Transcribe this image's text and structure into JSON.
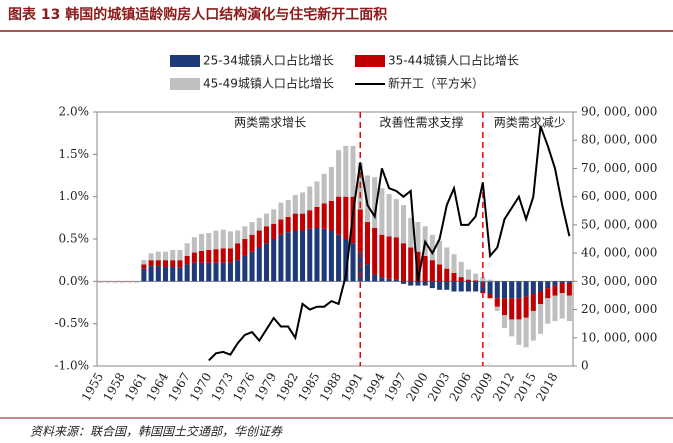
{
  "chart_data": {
    "type": "bar-line",
    "title": "图表 13   韩国的城镇适龄购房人口结构演化与住宅新开工面积",
    "source": "资料来源：联合国，韩国国土交通部，华创证券",
    "annotations": [
      "两类需求增长",
      "改善性需求支撑",
      "两类需求减少"
    ],
    "categories": [
      "1955",
      null,
      null,
      "1958",
      null,
      null,
      "1961",
      null,
      null,
      "1964",
      null,
      null,
      "1967",
      null,
      null,
      "1970",
      null,
      null,
      "1973",
      null,
      null,
      "1976",
      null,
      null,
      "1979",
      null,
      null,
      "1982",
      null,
      null,
      "1985",
      null,
      null,
      "1988",
      null,
      null,
      "1991",
      null,
      null,
      "1994",
      null,
      null,
      "1997",
      null,
      null,
      "2000",
      null,
      null,
      "2003",
      null,
      null,
      "2006",
      null,
      null,
      "2009",
      null,
      null,
      "2012",
      null,
      null,
      "2015",
      null,
      null,
      "2018",
      null,
      null
    ],
    "series": [
      {
        "name": "25-34城镇人口占比增长",
        "color": "#1f3a78",
        "values": [
          0,
          0,
          0,
          0,
          0,
          0,
          0.15,
          0.18,
          0.18,
          0.17,
          0.17,
          0.16,
          0.2,
          0.22,
          0.22,
          0.22,
          0.22,
          0.22,
          0.22,
          0.25,
          0.3,
          0.35,
          0.4,
          0.45,
          0.5,
          0.55,
          0.58,
          0.6,
          0.6,
          0.62,
          0.63,
          0.62,
          0.6,
          0.55,
          0.5,
          0.45,
          0.35,
          0.2,
          0.08,
          0.05,
          0.03,
          0.02,
          -0.03,
          -0.05,
          -0.05,
          -0.05,
          -0.08,
          -0.1,
          -0.1,
          -0.12,
          -0.12,
          -0.12,
          -0.12,
          -0.12,
          -0.15,
          -0.2,
          -0.2,
          -0.2,
          -0.2,
          -0.18,
          -0.15,
          -0.12,
          -0.08,
          -0.05,
          -0.02,
          -0.02
        ]
      },
      {
        "name": "35-44城镇人口占比增长",
        "color": "#c00000",
        "values": [
          0,
          0,
          0,
          0,
          0,
          0,
          0.05,
          0.07,
          0.07,
          0.08,
          0.08,
          0.09,
          0.1,
          0.12,
          0.14,
          0.15,
          0.16,
          0.17,
          0.17,
          0.2,
          0.2,
          0.2,
          0.2,
          0.2,
          0.18,
          0.18,
          0.18,
          0.2,
          0.2,
          0.22,
          0.25,
          0.3,
          0.35,
          0.45,
          0.5,
          0.55,
          0.5,
          0.5,
          0.55,
          0.5,
          0.5,
          0.5,
          0.45,
          0.4,
          0.35,
          0.3,
          0.25,
          0.2,
          0.15,
          0.1,
          0.05,
          0.02,
          0.01,
          -0.02,
          -0.05,
          -0.1,
          -0.2,
          -0.25,
          -0.25,
          -0.25,
          -0.2,
          -0.15,
          -0.12,
          -0.12,
          -0.12,
          -0.15
        ]
      },
      {
        "name": "45-49城镇人口占比增长",
        "color": "#bfbfbf",
        "values": [
          0,
          0,
          0,
          0,
          0,
          0,
          0.05,
          0.08,
          0.1,
          0.1,
          0.12,
          0.12,
          0.15,
          0.18,
          0.2,
          0.2,
          0.22,
          0.22,
          0.2,
          0.15,
          0.15,
          0.15,
          0.15,
          0.15,
          0.17,
          0.2,
          0.2,
          0.22,
          0.25,
          0.28,
          0.3,
          0.35,
          0.4,
          0.55,
          0.6,
          0.6,
          0.55,
          0.55,
          0.6,
          0.55,
          0.5,
          0.45,
          0.45,
          0.35,
          0.35,
          0.35,
          0.3,
          0.28,
          0.25,
          0.22,
          0.18,
          0.12,
          0.08,
          0.05,
          0.02,
          -0.05,
          -0.15,
          -0.2,
          -0.3,
          -0.35,
          -0.35,
          -0.35,
          -0.3,
          -0.3,
          -0.3,
          -0.3
        ]
      },
      {
        "name": "新开工（平方米）",
        "color": "#000000",
        "axis": "y2",
        "values": [
          null,
          null,
          null,
          null,
          null,
          null,
          null,
          null,
          null,
          null,
          null,
          null,
          null,
          null,
          null,
          2000000,
          4500000,
          5000000,
          4000000,
          8000000,
          11000000,
          12000000,
          9000000,
          13000000,
          17000000,
          14000000,
          14000000,
          10000000,
          22000000,
          20000000,
          21000000,
          21000000,
          23000000,
          22000000,
          32000000,
          54000000,
          72000000,
          57000000,
          53000000,
          70000000,
          63000000,
          62000000,
          60000000,
          62000000,
          30000000,
          44000000,
          40000000,
          45000000,
          57000000,
          63000000,
          50000000,
          50000000,
          53000000,
          65000000,
          39000000,
          42000000,
          52000000,
          56000000,
          60000000,
          52000000,
          60000000,
          85000000,
          78000000,
          70000000,
          57000000,
          46000000
        ]
      }
    ],
    "ylim": [
      -1.0,
      2.0
    ],
    "yticks": [
      {
        "value": -1.0,
        "label": "-1.0%"
      },
      {
        "value": -0.5,
        "label": "-0.5%"
      },
      {
        "value": 0,
        "label": "0.0%"
      },
      {
        "value": 0.5,
        "label": "0.5%"
      },
      {
        "value": 1.0,
        "label": "1.0%"
      },
      {
        "value": 1.5,
        "label": "1.5%"
      },
      {
        "value": 2.0,
        "label": "2.0%"
      }
    ],
    "y2lim": [
      0,
      90000000
    ],
    "y2ticks": [
      0,
      {
        "value": 10000000,
        "label": "10, 000, 000"
      },
      {
        "value": 20000000,
        "label": "20, 000, 000"
      },
      {
        "value": 30000000,
        "label": "30, 000, 000"
      },
      {
        "value": 40000000,
        "label": "40, 000, 000"
      },
      {
        "value": 50000000,
        "label": "50, 000, 000"
      },
      {
        "value": 60000000,
        "label": "60, 000, 000"
      },
      {
        "value": 70000000,
        "label": "70, 000, 000"
      },
      {
        "value": 80000000,
        "label": "80, 000, 000"
      },
      {
        "value": 90000000,
        "label": "90, 000, 000"
      }
    ]
  }
}
